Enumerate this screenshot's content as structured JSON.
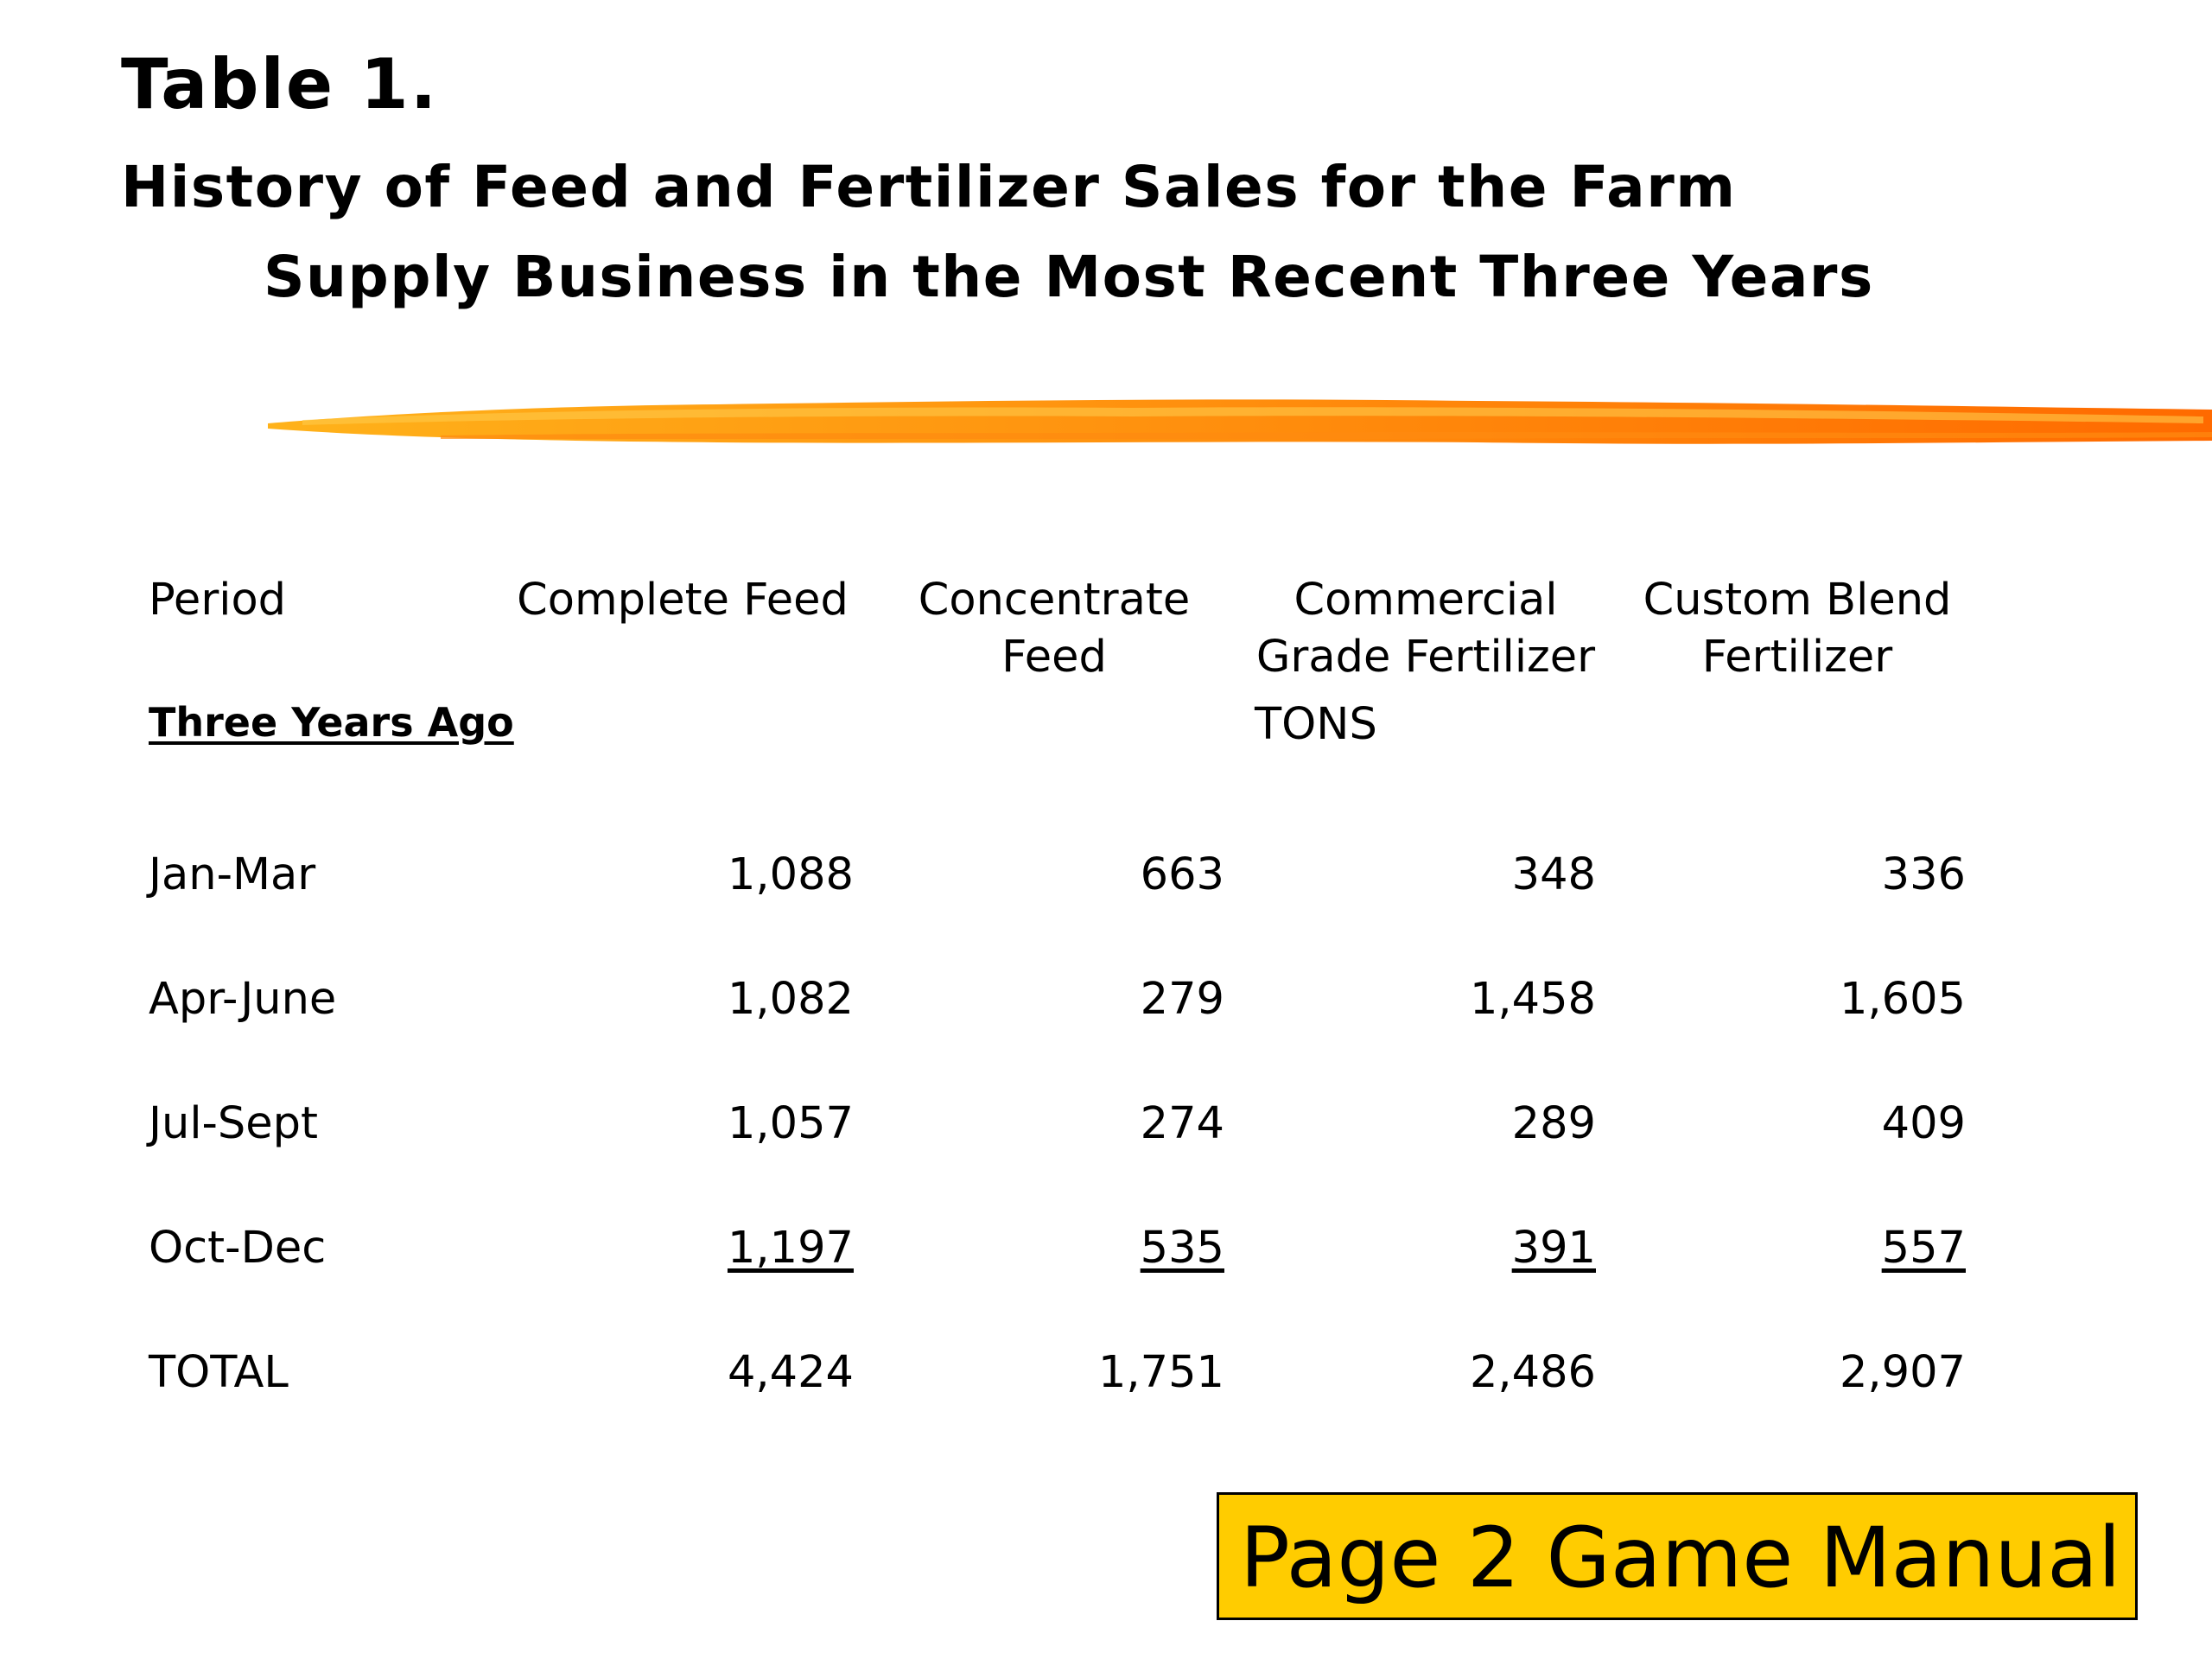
{
  "title": {
    "table_number": "Table 1.",
    "line1": "History of Feed and Fertilizer Sales for the Farm",
    "line2": "Supply Business in the Most Recent Three Years"
  },
  "colors": {
    "brush_start": "#FFB21A",
    "brush_end": "#FF6A00",
    "footer_bg": "#FFCC00"
  },
  "table": {
    "headers": {
      "period": "Period",
      "complete_feed": "Complete Feed",
      "concentrate_feed": [
        "Concentrate",
        "Feed"
      ],
      "commercial_grade_fertilizer": [
        "Commercial",
        "Grade Fertilizer"
      ],
      "custom_blend_fertilizer": [
        "Custom Blend",
        "Fertilizer"
      ]
    },
    "section_label": "Three Years Ago",
    "units": "TONS",
    "rows": [
      {
        "period": "Jan-Mar",
        "values": [
          "1,088",
          "663",
          "348",
          "336"
        ]
      },
      {
        "period": "Apr-June",
        "values": [
          "1,082",
          "279",
          "1,458",
          "1,605"
        ]
      },
      {
        "period": "Jul-Sept",
        "values": [
          "1,057",
          "274",
          "289",
          "409"
        ]
      },
      {
        "period": "Oct-Dec",
        "values": [
          "1,197",
          "535",
          "391",
          "557"
        ]
      }
    ],
    "total": {
      "period": "TOTAL",
      "values": [
        "4,424",
        "1,751",
        "2,486",
        "2,907"
      ]
    }
  },
  "footer": {
    "label": "Page 2 Game Manual"
  }
}
